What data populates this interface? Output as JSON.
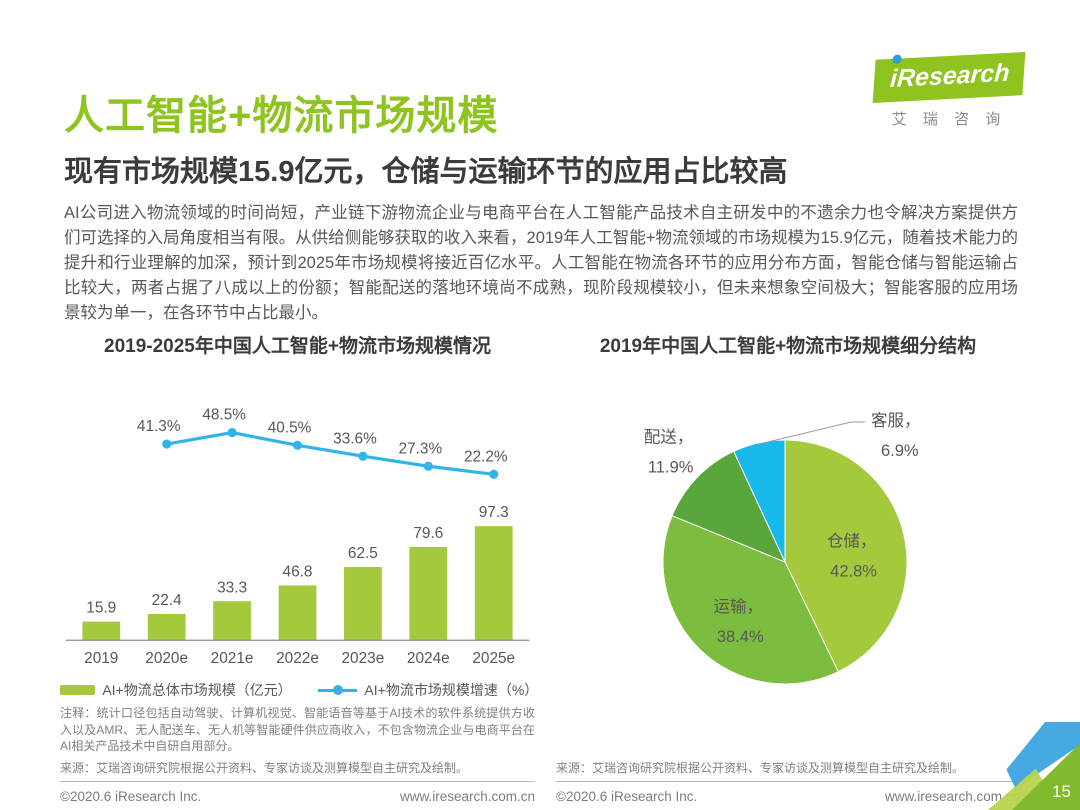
{
  "page": {
    "page_number": "15"
  },
  "header": {
    "title": "人工智能+物流市场规模",
    "subtitle": "现有市场规模15.9亿元，仓储与运输环节的应用占比较高",
    "body": "AI公司进入物流领域的时间尚短，产业链下游物流企业与电商平台在人工智能产品技术自主研发中的不遗余力也令解决方案提供方们可选择的入局角度相当有限。从供给侧能够获取的收入来看，2019年人工智能+物流领域的市场规模为15.9亿元，随着技术能力的提升和行业理解的加深，预计到2025年市场规模将接近百亿水平。人工智能在物流各环节的应用分布方面，智能仓储与智能运输占比较大，两者占据了八成以上的份额；智能配送的落地环境尚不成熟，现阶段规模较小，但未来想象空间极大；智能客服的应用场景较为单一，在各环节中占比最小。"
  },
  "logo": {
    "brand": "iResearch",
    "caption": "艾 瑞 咨 询"
  },
  "left_panel": {
    "title": "2019-2025年中国人工智能+物流市场规模情况",
    "note": "注释：统计口径包括自动驾驶、计算机视觉、智能语音等基于AI技术的软件系统提供方收入以及AMR、无人配送车、无人机等智能硬件供应商收入，不包含物流企业与电商平台在AI相关产品技术中自研自用部分。",
    "source": "来源：艾瑞咨询研究院根据公开资料、专家访谈及测算模型自主研究及绘制。",
    "footer": {
      "copyright": "©2020.6 iResearch Inc.",
      "website": "www.iresearch.com.cn"
    }
  },
  "right_panel": {
    "title": "2019年中国人工智能+物流市场规模细分结构",
    "source": "来源：艾瑞咨询研究院根据公开资料、专家访谈及测算模型自主研究及绘制。",
    "footer": {
      "copyright": "©2020.6 iResearch Inc.",
      "website": "www.iresearch.com.cn"
    }
  },
  "colors": {
    "brand_green": "#8fc31f",
    "bar_green": "#a5c93c",
    "line_blue": "#30b4e9",
    "text_dark": "#3e3a39",
    "text_gray": "#595757"
  },
  "chart_data": [
    {
      "type": "bar",
      "subtype": "bar-line-combo",
      "title": "2019-2025年中国人工智能+物流市场规模情况",
      "categories": [
        "2019",
        "2020e",
        "2021e",
        "2022e",
        "2023e",
        "2024e",
        "2025e"
      ],
      "series": [
        {
          "name": "AI+物流总体市场规模（亿元）",
          "type": "bar",
          "color": "#a5c93c",
          "values": [
            15.9,
            22.4,
            33.3,
            46.8,
            62.5,
            79.6,
            97.3
          ]
        },
        {
          "name": "AI+物流市场规模增速（%）",
          "type": "line",
          "color": "#30b4e9",
          "categories": [
            "2020e",
            "2021e",
            "2022e",
            "2023e",
            "2024e",
            "2025e"
          ],
          "values": [
            41.3,
            48.5,
            40.5,
            33.6,
            27.3,
            22.2
          ]
        }
      ],
      "xlabel": "",
      "ylabel": "",
      "grid": false,
      "legend_position": "bottom"
    },
    {
      "type": "pie",
      "title": "2019年中国人工智能+物流市场规模细分结构",
      "unit": "%",
      "start_angle": "12-oclock",
      "direction": "clockwise",
      "slices": [
        {
          "label": "仓储",
          "value": 42.8,
          "color": "#a5c93c",
          "label_pos": "inside"
        },
        {
          "label": "运输",
          "value": 38.4,
          "color": "#7cbc3f",
          "label_pos": "inside"
        },
        {
          "label": "配送",
          "value": 11.9,
          "color": "#58a63c",
          "label_pos": "outside-left"
        },
        {
          "label": "客服",
          "value": 6.9,
          "color": "#16b9e9",
          "label_pos": "outside-right"
        }
      ]
    }
  ]
}
